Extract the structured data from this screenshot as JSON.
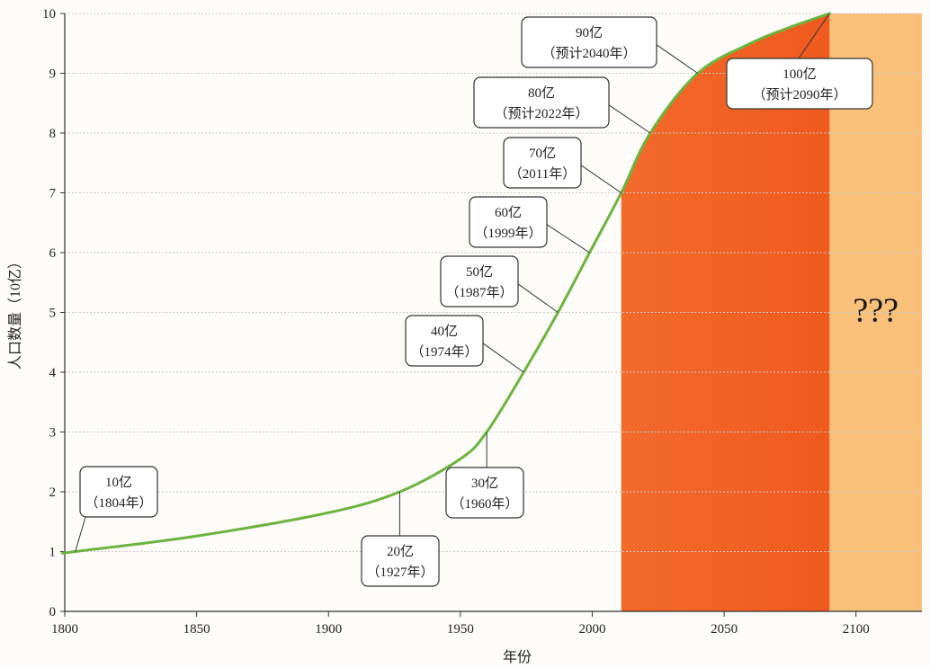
{
  "chart_data": {
    "type": "line",
    "title": "",
    "xlabel": "年份",
    "ylabel": "人口数量（10亿）",
    "xlim": [
      1800,
      2125
    ],
    "ylim": [
      0,
      10
    ],
    "grid": true,
    "x_ticks": [
      1800,
      1850,
      1900,
      1950,
      2000,
      2050,
      2100
    ],
    "y_ticks": [
      0,
      1,
      2,
      3,
      4,
      5,
      6,
      7,
      8,
      9,
      10
    ],
    "y_tick_labels": [
      "0",
      "1",
      "2",
      "3",
      "4",
      "5",
      "6",
      "7",
      "8",
      "9",
      "10"
    ],
    "series": [
      {
        "color": "#6db33f",
        "x": [
          1800,
          1804,
          1850,
          1900,
          1927,
          1950,
          1960,
          1974,
          1987,
          1999,
          2011,
          2022,
          2040,
          2060,
          2075,
          2090
        ],
        "y": [
          0.98,
          1.0,
          1.26,
          1.65,
          2.0,
          2.55,
          3.0,
          4.0,
          5.0,
          6.0,
          7.0,
          8.0,
          9.0,
          9.5,
          9.77,
          10.0
        ]
      }
    ],
    "annotations": [
      {
        "line1": "10亿",
        "line2": "（1804年）",
        "x": 1804,
        "y": 1.0
      },
      {
        "line1": "20亿",
        "line2": "（1927年）",
        "x": 1927,
        "y": 2.0
      },
      {
        "line1": "30亿",
        "line2": "（1960年）",
        "x": 1960,
        "y": 3.0
      },
      {
        "line1": "40亿",
        "line2": "（1974年）",
        "x": 1974,
        "y": 4.0
      },
      {
        "line1": "50亿",
        "line2": "（1987年）",
        "x": 1987,
        "y": 5.0
      },
      {
        "line1": "60亿",
        "line2": "（1999年）",
        "x": 1999,
        "y": 6.0
      },
      {
        "line1": "70亿",
        "line2": "（2011年）",
        "x": 2011,
        "y": 7.0
      },
      {
        "line1": "80亿",
        "line2": "（预计2022年）",
        "x": 2022,
        "y": 8.0
      },
      {
        "line1": "90亿",
        "line2": "（预计2040年）",
        "x": 2040,
        "y": 9.0
      },
      {
        "line1": "100亿",
        "line2": "（预计2090年）",
        "x": 2090,
        "y": 10.0
      }
    ],
    "regions": [
      {
        "x_start": 2011,
        "x_end": 2090,
        "color": "#f26b2a",
        "under_curve": true
      },
      {
        "x_start": 2090,
        "x_end": 2125,
        "color": "#f9c07a",
        "under_curve": false,
        "label": "???"
      }
    ]
  }
}
